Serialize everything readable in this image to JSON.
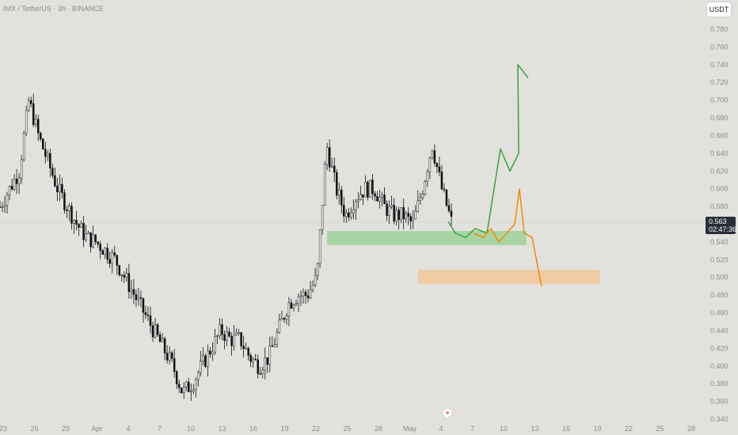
{
  "header": {
    "symbol_title": "IMX / TetherUS · 3h · BINANCE"
  },
  "currency_button": {
    "label": "USDT"
  },
  "price_tag": {
    "price": "0.563",
    "countdown": "02:47:36"
  },
  "chart_data": {
    "type": "candlestick",
    "title": "IMX / TetherUS · 3h · BINANCE",
    "y_axis": {
      "side": "right",
      "ylim": [
        0.34,
        0.79
      ],
      "ticks": [
        "0.780",
        "0.760",
        "0.740",
        "0.720",
        "0.700",
        "0.680",
        "0.660",
        "0.640",
        "0.620",
        "0.600",
        "0.580",
        "0.560",
        "0.540",
        "0.520",
        "0.500",
        "0.480",
        "0.460",
        "0.440",
        "0.420",
        "0.400",
        "0.380",
        "0.360",
        "0.340"
      ]
    },
    "x_axis": {
      "ticks": [
        "23",
        "26",
        "29",
        "Apr",
        "4",
        "7",
        "10",
        "13",
        "16",
        "19",
        "22",
        "25",
        "28",
        "May",
        "4",
        "7",
        "10",
        "13",
        "16",
        "19",
        "22",
        "25",
        "28"
      ]
    },
    "current_price": 0.563,
    "price_path": [
      [
        0,
        0.58
      ],
      [
        1,
        0.6
      ],
      [
        2,
        0.62
      ],
      [
        3,
        0.7
      ],
      [
        4,
        0.66
      ],
      [
        5,
        0.63
      ],
      [
        6,
        0.6
      ],
      [
        7,
        0.58
      ],
      [
        8,
        0.56
      ],
      [
        9,
        0.545
      ],
      [
        10,
        0.54
      ],
      [
        11,
        0.53
      ],
      [
        12,
        0.52
      ],
      [
        13,
        0.5
      ],
      [
        14,
        0.48
      ],
      [
        15,
        0.46
      ],
      [
        16,
        0.44
      ],
      [
        17,
        0.42
      ],
      [
        18,
        0.4
      ],
      [
        19,
        0.37
      ],
      [
        20,
        0.38
      ],
      [
        21,
        0.4
      ],
      [
        22,
        0.42
      ],
      [
        23,
        0.44
      ],
      [
        24,
        0.43
      ],
      [
        25,
        0.43
      ],
      [
        26,
        0.41
      ],
      [
        27,
        0.4
      ],
      [
        28,
        0.41
      ],
      [
        29,
        0.44
      ],
      [
        30,
        0.47
      ],
      [
        31,
        0.48
      ],
      [
        32,
        0.48
      ],
      [
        33,
        0.5
      ],
      [
        34,
        0.65
      ],
      [
        35,
        0.6
      ],
      [
        36,
        0.57
      ],
      [
        37,
        0.59
      ],
      [
        38,
        0.6
      ],
      [
        39,
        0.6
      ],
      [
        40,
        0.58
      ],
      [
        41,
        0.57
      ],
      [
        42,
        0.57
      ],
      [
        43,
        0.56
      ],
      [
        44,
        0.6
      ],
      [
        45,
        0.65
      ],
      [
        46,
        0.6
      ],
      [
        47,
        0.563
      ]
    ],
    "zones": [
      {
        "name": "support",
        "y_range": [
          0.54,
          0.547
        ],
        "color": "#9fd199"
      },
      {
        "name": "lower",
        "y_range": [
          0.496,
          0.503
        ],
        "color": "#f2c79a"
      }
    ],
    "projections": [
      {
        "name": "bullish",
        "color": "#3aa33a",
        "path": [
          0.563,
          0.55,
          0.545,
          0.555,
          0.55,
          0.645,
          0.62,
          0.64,
          0.74,
          0.725
        ]
      },
      {
        "name": "bearish",
        "color": "#f08c00",
        "path": [
          0.55,
          0.545,
          0.555,
          0.54,
          0.56,
          0.6,
          0.55,
          0.545,
          0.49
        ]
      }
    ]
  }
}
